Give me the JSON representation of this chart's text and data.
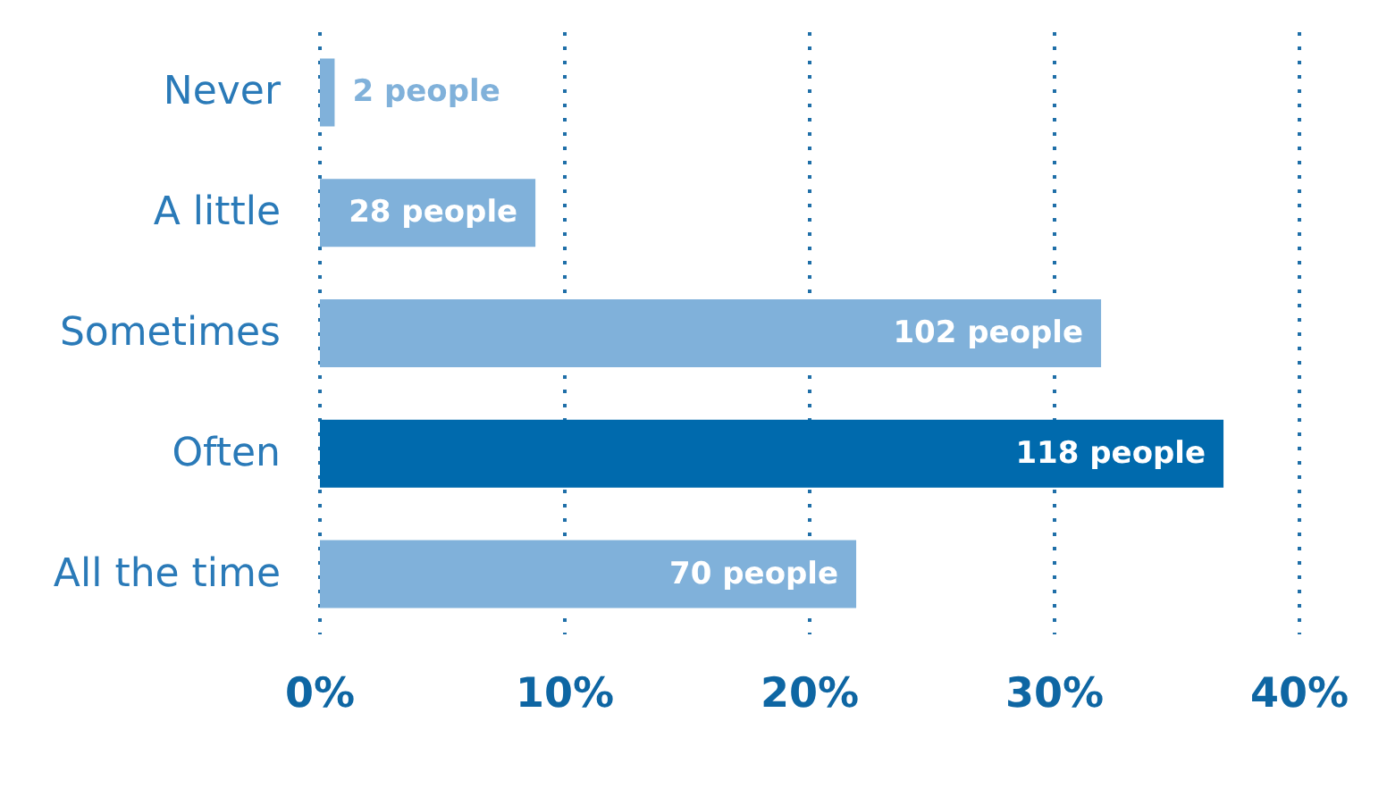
{
  "chart_data": {
    "type": "bar",
    "orientation": "horizontal",
    "categories": [
      "Never",
      "A little",
      "Sometimes",
      "Often",
      "All the time"
    ],
    "values": [
      0.6,
      8.8,
      31.9,
      36.9,
      21.9
    ],
    "colors": [
      "#80b1da",
      "#80b1da",
      "#80b1da",
      "#006aad",
      "#80b1da"
    ],
    "annotations": [
      {
        "text": "2 people",
        "x": 0.6,
        "y": "Never"
      },
      {
        "text": "28 people",
        "x": 8.8,
        "y": "A little"
      },
      {
        "text": "102 people",
        "x": 31.9,
        "y": "Sometimes"
      },
      {
        "text": "118 people",
        "x": 36.9,
        "y": "Often"
      },
      {
        "text": "70 people",
        "x": 21.9,
        "y": "All the time"
      }
    ],
    "xlim": [
      0,
      40
    ],
    "xticks": [
      {
        "value": 0,
        "label": "0%"
      },
      {
        "value": 10,
        "label": "10%"
      },
      {
        "value": 20,
        "label": "20%"
      },
      {
        "value": 30,
        "label": "30%"
      },
      {
        "value": 40,
        "label": "40%"
      }
    ],
    "grid": "x"
  }
}
